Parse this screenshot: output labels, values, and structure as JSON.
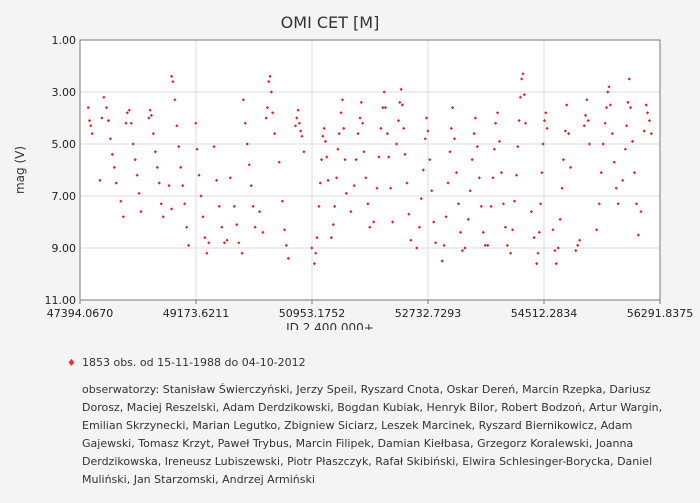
{
  "chart_data": {
    "type": "scatter",
    "title": "OMI CET [M]",
    "xlabel": "JD 2 400 000+",
    "ylabel": "mag (V)",
    "xlim": [
      47394.067,
      56291.8375
    ],
    "ylim": [
      1.0,
      11.0
    ],
    "y_inverted": true,
    "x_ticks": [
      "47394.0670",
      "49173.6211",
      "50953.1752",
      "52732.7293",
      "54512.2834",
      "56291.8375"
    ],
    "y_ticks": [
      "1.00",
      "3.00",
      "5.00",
      "7.00",
      "9.00",
      "11.00"
    ],
    "grid": true,
    "marker_color": "#dd2222",
    "series": [
      {
        "points": [
          [
            47520,
            3.6
          ],
          [
            47540,
            4.1
          ],
          [
            47560,
            4.3
          ],
          [
            47580,
            4.6
          ],
          [
            47700,
            6.4
          ],
          [
            47730,
            4.0
          ],
          [
            47760,
            3.2
          ],
          [
            47800,
            3.6
          ],
          [
            47830,
            4.1
          ],
          [
            47860,
            4.8
          ],
          [
            47890,
            5.4
          ],
          [
            47920,
            5.9
          ],
          [
            47950,
            6.5
          ],
          [
            48020,
            7.2
          ],
          [
            48060,
            7.8
          ],
          [
            48100,
            4.2
          ],
          [
            48120,
            3.8
          ],
          [
            48150,
            3.7
          ],
          [
            48180,
            4.2
          ],
          [
            48210,
            5.0
          ],
          [
            48240,
            5.6
          ],
          [
            48270,
            6.2
          ],
          [
            48300,
            6.9
          ],
          [
            48330,
            7.6
          ],
          [
            48450,
            4.0
          ],
          [
            48470,
            3.7
          ],
          [
            48490,
            3.9
          ],
          [
            48520,
            4.6
          ],
          [
            48550,
            5.3
          ],
          [
            48580,
            5.9
          ],
          [
            48610,
            6.5
          ],
          [
            48640,
            7.3
          ],
          [
            48670,
            7.8
          ],
          [
            48760,
            6.6
          ],
          [
            48800,
            7.5
          ],
          [
            48800,
            2.4
          ],
          [
            48820,
            2.6
          ],
          [
            48850,
            3.3
          ],
          [
            48880,
            4.3
          ],
          [
            48910,
            5.1
          ],
          [
            48940,
            5.9
          ],
          [
            48970,
            6.6
          ],
          [
            49000,
            7.3
          ],
          [
            49030,
            8.2
          ],
          [
            49060,
            8.9
          ],
          [
            49170,
            4.2
          ],
          [
            49190,
            5.2
          ],
          [
            49220,
            6.2
          ],
          [
            49250,
            7.0
          ],
          [
            49280,
            7.8
          ],
          [
            49310,
            8.6
          ],
          [
            49340,
            9.2
          ],
          [
            49370,
            8.8
          ],
          [
            49450,
            5.1
          ],
          [
            49490,
            6.4
          ],
          [
            49530,
            7.4
          ],
          [
            49570,
            8.2
          ],
          [
            49610,
            8.8
          ],
          [
            49650,
            8.7
          ],
          [
            49700,
            6.3
          ],
          [
            49760,
            7.4
          ],
          [
            49800,
            8.1
          ],
          [
            49830,
            8.8
          ],
          [
            49880,
            9.2
          ],
          [
            49900,
            3.3
          ],
          [
            49930,
            4.2
          ],
          [
            49960,
            5.0
          ],
          [
            49990,
            5.8
          ],
          [
            50020,
            6.6
          ],
          [
            50050,
            7.4
          ],
          [
            50080,
            8.2
          ],
          [
            50150,
            7.6
          ],
          [
            50200,
            8.4
          ],
          [
            50250,
            4.0
          ],
          [
            50270,
            3.6
          ],
          [
            50290,
            2.6
          ],
          [
            50310,
            2.4
          ],
          [
            50330,
            3.0
          ],
          [
            50350,
            3.8
          ],
          [
            50380,
            4.6
          ],
          [
            50450,
            5.7
          ],
          [
            50500,
            7.2
          ],
          [
            50530,
            8.3
          ],
          [
            50560,
            8.9
          ],
          [
            50590,
            9.4
          ],
          [
            50700,
            4.3
          ],
          [
            50720,
            4.0
          ],
          [
            50740,
            3.7
          ],
          [
            50760,
            4.2
          ],
          [
            50780,
            4.5
          ],
          [
            50800,
            4.7
          ],
          [
            50830,
            5.3
          ],
          [
            50950,
            9.0
          ],
          [
            50990,
            9.6
          ],
          [
            51010,
            9.2
          ],
          [
            51030,
            8.6
          ],
          [
            51060,
            7.4
          ],
          [
            51080,
            6.5
          ],
          [
            51100,
            5.6
          ],
          [
            51120,
            4.7
          ],
          [
            51140,
            4.4
          ],
          [
            51160,
            4.9
          ],
          [
            51180,
            5.5
          ],
          [
            51200,
            6.4
          ],
          [
            51250,
            8.6
          ],
          [
            51280,
            8.1
          ],
          [
            51300,
            7.4
          ],
          [
            51330,
            6.3
          ],
          [
            51350,
            5.2
          ],
          [
            51370,
            4.6
          ],
          [
            51400,
            3.8
          ],
          [
            51420,
            3.3
          ],
          [
            51440,
            4.4
          ],
          [
            51460,
            5.6
          ],
          [
            51480,
            6.9
          ],
          [
            51550,
            7.6
          ],
          [
            51600,
            6.6
          ],
          [
            51630,
            5.6
          ],
          [
            51660,
            4.6
          ],
          [
            51690,
            4.0
          ],
          [
            51710,
            3.4
          ],
          [
            51730,
            4.2
          ],
          [
            51750,
            5.3
          ],
          [
            51780,
            6.3
          ],
          [
            51810,
            7.3
          ],
          [
            51840,
            8.2
          ],
          [
            51900,
            8.0
          ],
          [
            51950,
            6.7
          ],
          [
            51980,
            5.5
          ],
          [
            52010,
            4.4
          ],
          [
            52040,
            3.6
          ],
          [
            52060,
            3.0
          ],
          [
            52080,
            3.6
          ],
          [
            52110,
            4.6
          ],
          [
            52130,
            5.5
          ],
          [
            52160,
            6.7
          ],
          [
            52190,
            8.0
          ],
          [
            52250,
            5.0
          ],
          [
            52280,
            4.1
          ],
          [
            52300,
            3.4
          ],
          [
            52320,
            2.9
          ],
          [
            52340,
            3.5
          ],
          [
            52360,
            4.4
          ],
          [
            52380,
            5.4
          ],
          [
            52410,
            6.5
          ],
          [
            52440,
            7.7
          ],
          [
            52470,
            8.7
          ],
          [
            52560,
            9.0
          ],
          [
            52600,
            8.2
          ],
          [
            52630,
            7.1
          ],
          [
            52660,
            6.0
          ],
          [
            52690,
            4.8
          ],
          [
            52710,
            4.0
          ],
          [
            52730,
            4.5
          ],
          [
            52760,
            5.6
          ],
          [
            52790,
            6.8
          ],
          [
            52820,
            8.0
          ],
          [
            52850,
            8.8
          ],
          [
            52950,
            9.5
          ],
          [
            52980,
            8.9
          ],
          [
            53010,
            7.8
          ],
          [
            53040,
            6.5
          ],
          [
            53070,
            5.3
          ],
          [
            53090,
            4.4
          ],
          [
            53110,
            3.6
          ],
          [
            53140,
            4.8
          ],
          [
            53170,
            6.1
          ],
          [
            53200,
            7.3
          ],
          [
            53230,
            8.4
          ],
          [
            53260,
            9.1
          ],
          [
            53300,
            9.0
          ],
          [
            53350,
            7.9
          ],
          [
            53380,
            6.8
          ],
          [
            53410,
            5.6
          ],
          [
            53440,
            4.6
          ],
          [
            53460,
            4.0
          ],
          [
            53490,
            5.1
          ],
          [
            53520,
            6.3
          ],
          [
            53550,
            7.4
          ],
          [
            53580,
            8.4
          ],
          [
            53610,
            8.9
          ],
          [
            53650,
            8.9
          ],
          [
            53700,
            7.4
          ],
          [
            53730,
            6.3
          ],
          [
            53750,
            5.2
          ],
          [
            53770,
            4.2
          ],
          [
            53800,
            3.8
          ],
          [
            53830,
            4.9
          ],
          [
            53860,
            6.1
          ],
          [
            53890,
            7.3
          ],
          [
            53920,
            8.2
          ],
          [
            53950,
            8.9
          ],
          [
            54000,
            9.2
          ],
          [
            54030,
            8.3
          ],
          [
            54060,
            7.2
          ],
          [
            54090,
            6.2
          ],
          [
            54110,
            5.1
          ],
          [
            54130,
            4.1
          ],
          [
            54150,
            3.2
          ],
          [
            54170,
            2.5
          ],
          [
            54190,
            2.3
          ],
          [
            54210,
            3.1
          ],
          [
            54230,
            4.2
          ],
          [
            54320,
            7.6
          ],
          [
            54360,
            8.6
          ],
          [
            54400,
            9.6
          ],
          [
            54420,
            9.2
          ],
          [
            54440,
            8.4
          ],
          [
            54460,
            7.3
          ],
          [
            54480,
            6.1
          ],
          [
            54500,
            5.0
          ],
          [
            54520,
            4.1
          ],
          [
            54540,
            3.8
          ],
          [
            54560,
            4.4
          ],
          [
            54650,
            8.3
          ],
          [
            54680,
            9.1
          ],
          [
            54700,
            9.6
          ],
          [
            54730,
            9.0
          ],
          [
            54760,
            7.9
          ],
          [
            54790,
            6.7
          ],
          [
            54810,
            5.6
          ],
          [
            54840,
            4.5
          ],
          [
            54860,
            3.5
          ],
          [
            54890,
            4.6
          ],
          [
            54920,
            5.9
          ],
          [
            55000,
            9.1
          ],
          [
            55030,
            8.9
          ],
          [
            55060,
            8.7
          ],
          [
            55130,
            4.3
          ],
          [
            55150,
            3.9
          ],
          [
            55170,
            3.3
          ],
          [
            55190,
            4.1
          ],
          [
            55210,
            5.0
          ],
          [
            55320,
            8.3
          ],
          [
            55360,
            7.3
          ],
          [
            55390,
            6.1
          ],
          [
            55420,
            5.0
          ],
          [
            55450,
            4.2
          ],
          [
            55470,
            3.6
          ],
          [
            55490,
            3.0
          ],
          [
            55510,
            2.8
          ],
          [
            55530,
            3.5
          ],
          [
            55560,
            4.6
          ],
          [
            55590,
            5.7
          ],
          [
            55620,
            6.7
          ],
          [
            55650,
            7.3
          ],
          [
            55720,
            6.4
          ],
          [
            55760,
            5.2
          ],
          [
            55780,
            4.3
          ],
          [
            55800,
            3.4
          ],
          [
            55820,
            2.5
          ],
          [
            55840,
            3.6
          ],
          [
            55870,
            4.9
          ],
          [
            55900,
            6.1
          ],
          [
            55930,
            7.3
          ],
          [
            55960,
            8.5
          ],
          [
            56000,
            7.6
          ],
          [
            56050,
            4.5
          ],
          [
            56080,
            3.5
          ],
          [
            56100,
            3.8
          ],
          [
            56130,
            4.1
          ],
          [
            56160,
            4.6
          ]
        ]
      }
    ]
  },
  "legend": {
    "text": "1853 obs. od 15-11-1988 do 04-10-2012"
  },
  "observers": {
    "text": "obserwatorzy: Stanisław Świerczyński, Jerzy Speil, Ryszard Cnota, Oskar Dereń, Marcin Rzepka, Dariusz Dorosz, Maciej Reszelski, Adam Derdzikowski, Bogdan Kubiak, Henryk Bilor, Robert Bodzoń, Artur Wargin, Emilian Skrzynecki, Marian Legutko, Zbigniew Siciarz, Leszek Marcinek, Ryszard Biernikowicz, Adam Gajewski, Tomasz Krzyt, Paweł Trybus, Marcin Filipek, Damian Kiełbasa, Grzegorz Koralewski, Joanna Derdzikowska, Ireneusz Lubiszewski, Piotr Płaszczyk, Rafał Skibiński, Elwira Schlesinger-Borycka, Daniel Muliński, Jan Starzomski, Andrzej Armiński"
  }
}
